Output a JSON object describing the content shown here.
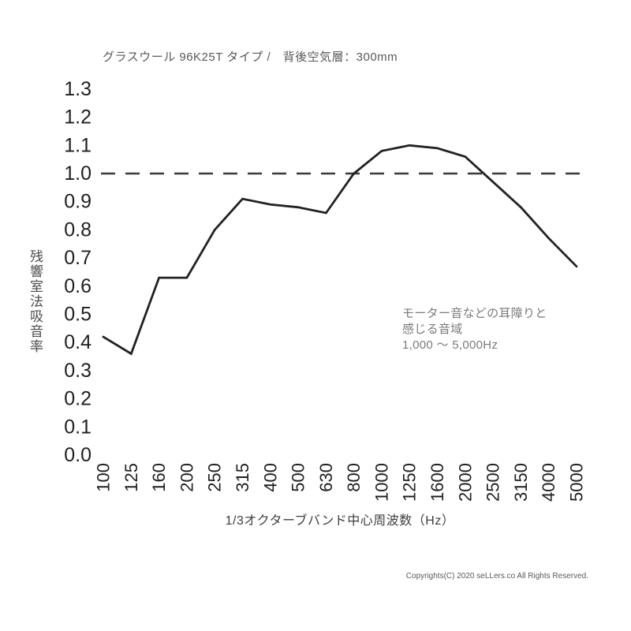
{
  "page": {
    "copyright": "Copyrights(C) 2020 seLLers.co All Rights Reserved."
  },
  "chart_data": {
    "type": "line",
    "title": "グラスウール 96K25T タイプ /　背後空気層：300mm",
    "xlabel": "1/3オクターブバンド中心周波数（Hz）",
    "ylabel": "残響室法吸音率",
    "categories": [
      "100",
      "125",
      "160",
      "200",
      "250",
      "315",
      "400",
      "500",
      "630",
      "800",
      "1000",
      "1250",
      "1600",
      "2000",
      "2500",
      "3150",
      "4000",
      "5000"
    ],
    "values": [
      0.42,
      0.36,
      0.63,
      0.63,
      0.8,
      0.91,
      0.89,
      0.88,
      0.86,
      1.0,
      1.08,
      1.1,
      1.09,
      1.06,
      0.97,
      0.88,
      0.77,
      0.67
    ],
    "ylim": [
      0.0,
      1.3
    ],
    "ytick_step": 0.1,
    "ytick_format_decimals": 1,
    "grid": false,
    "legend": false,
    "reference_line": {
      "value": 1.0,
      "style": "dashed",
      "color": "#3a3a3a"
    },
    "line_color": "#222222",
    "annotation": {
      "text": [
        "モーター音などの耳障りと",
        "感じる音域",
        "1,000 ～ 5,000Hz"
      ]
    }
  }
}
